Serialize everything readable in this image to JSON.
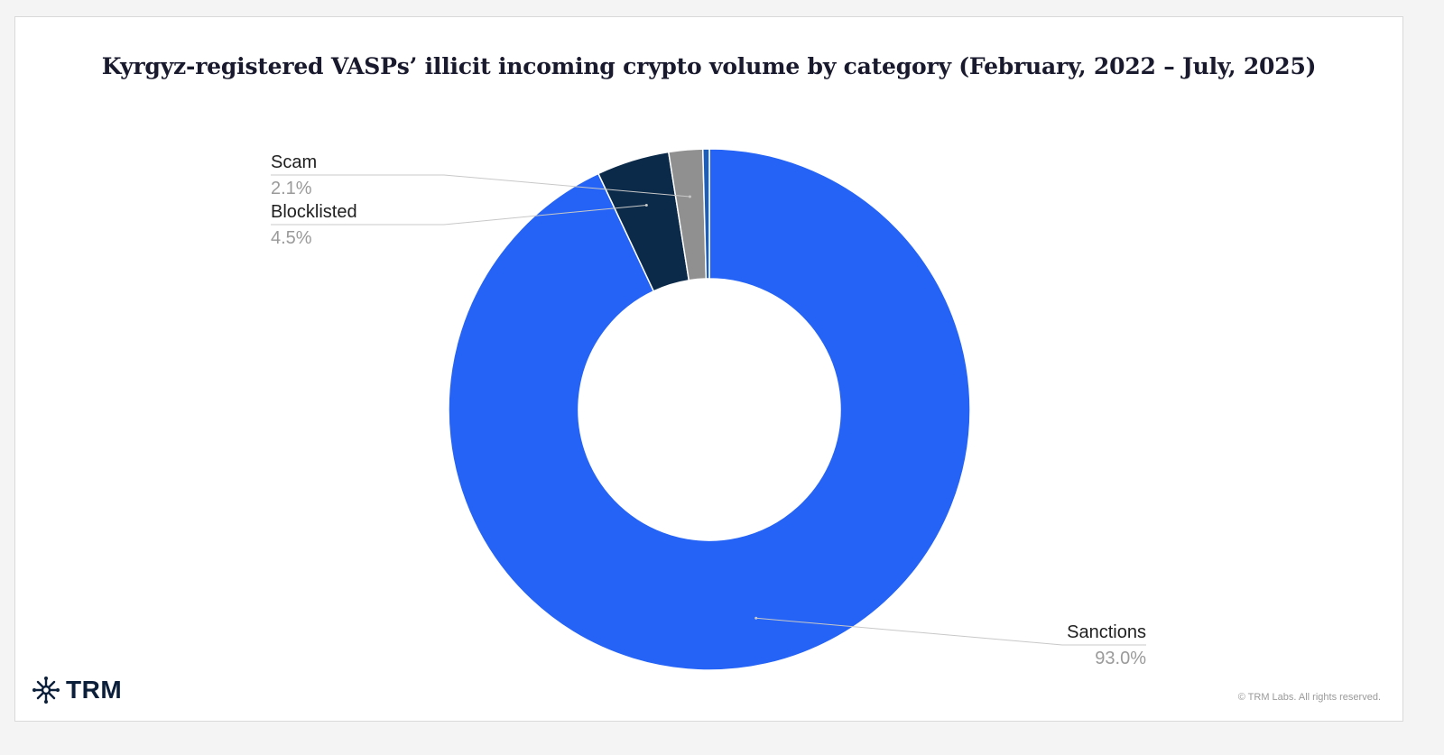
{
  "chart_data": {
    "type": "pie",
    "title": "Kyrgyz-registered VASPs’ illicit incoming crypto volume by category (February, 2022 – July, 2025)",
    "hole": "donut",
    "slices": [
      {
        "label": "Sanctions",
        "percent_label": "93.0%",
        "value": 93.0,
        "color": "#2463f5",
        "show_label": true
      },
      {
        "label": "Blocklisted",
        "percent_label": "4.5%",
        "value": 4.5,
        "color": "#0b2a4a",
        "show_label": true
      },
      {
        "label": "Scam",
        "percent_label": "2.1%",
        "value": 2.1,
        "color": "#909090",
        "show_label": true
      },
      {
        "label": "",
        "percent_label": "",
        "value": 0.4,
        "color": "#1d5fb8",
        "show_label": false
      }
    ]
  },
  "branding": {
    "logo_text": "TRM",
    "logo_icon": "trm-asterisk-icon",
    "copyright": "© TRM Labs. All rights reserved."
  }
}
